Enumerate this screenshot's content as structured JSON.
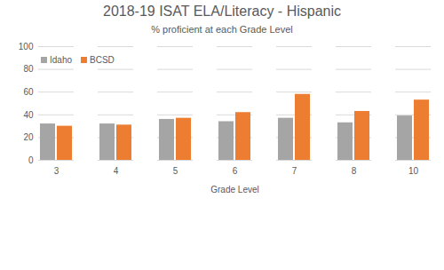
{
  "chart_data": {
    "type": "bar",
    "title": "2018-19 ISAT ELA/Literacy - Hispanic",
    "subtitle": "% proficient at each Grade Level",
    "xlabel": "Grade Level",
    "categories": [
      "3",
      "4",
      "5",
      "6",
      "7",
      "8",
      "10"
    ],
    "series": [
      {
        "name": "Idaho",
        "color": "#a5a5a5",
        "values": [
          32,
          32,
          36,
          34,
          37,
          33,
          39
        ]
      },
      {
        "name": "BCSD",
        "color": "#ed7d31",
        "values": [
          30,
          31,
          37,
          42,
          58,
          43,
          53
        ]
      }
    ],
    "ylim": [
      0,
      100
    ],
    "yticks": [
      0,
      20,
      40,
      60,
      80,
      100
    ],
    "grid": true,
    "legend": "top-left"
  }
}
